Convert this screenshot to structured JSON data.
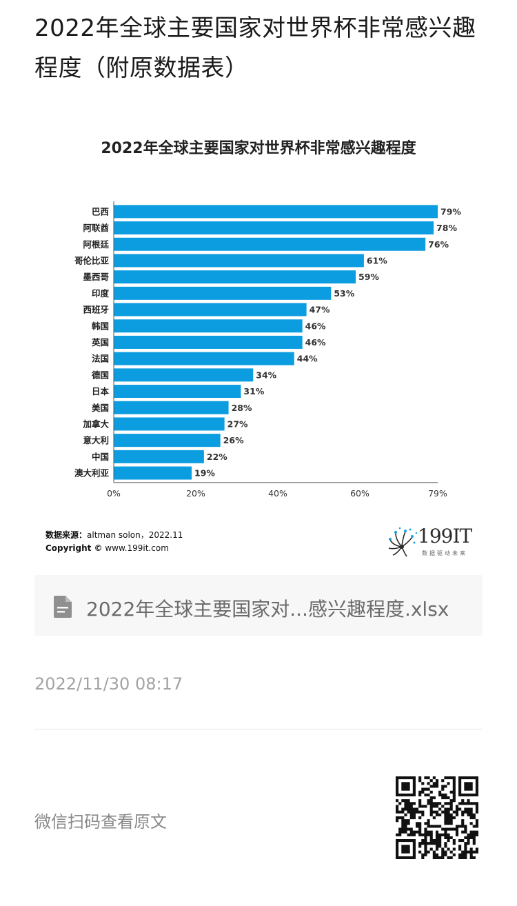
{
  "page": {
    "title": "2022年全球主要国家对世界杯非常感兴趣程度（附原数据表）",
    "timestamp": "2022/11/30 08:17",
    "qr_caption": "微信扫码查看原文"
  },
  "chart_data": {
    "type": "bar",
    "orientation": "horizontal",
    "title": "2022年全球主要国家对世界杯非常感兴趣程度",
    "categories": [
      "巴西",
      "阿联酋",
      "阿根廷",
      "哥伦比亚",
      "墨西哥",
      "印度",
      "西班牙",
      "韩国",
      "英国",
      "法国",
      "德国",
      "日本",
      "美国",
      "加拿大",
      "意大利",
      "中国",
      "澳大利亚"
    ],
    "values": [
      79,
      78,
      76,
      61,
      59,
      53,
      47,
      46,
      46,
      44,
      34,
      31,
      28,
      27,
      26,
      22,
      19
    ],
    "value_labels": [
      "79%",
      "78%",
      "76%",
      "61%",
      "59%",
      "53%",
      "47%",
      "46%",
      "46%",
      "44%",
      "34%",
      "31%",
      "28%",
      "27%",
      "26%",
      "22%",
      "19%"
    ],
    "xlim": [
      0,
      79
    ],
    "x_ticks": [
      0,
      20,
      40,
      60,
      79
    ],
    "x_tick_labels": [
      "0%",
      "20%",
      "40%",
      "60%",
      "79%"
    ],
    "bar_color": "#0c9de0",
    "grid": false,
    "legend": "none"
  },
  "chart_footer": {
    "source_key": "数据来源：",
    "source_value": "altman solon，2022.11",
    "copyright_key": "Copyright ©",
    "copyright_value": " www.199it.com",
    "logo_text": "199IT",
    "logo_tagline": "数据驱动未来"
  },
  "attachment": {
    "filename": "2022年全球主要国家对...感兴趣程度.xlsx",
    "icon": "document-icon"
  }
}
